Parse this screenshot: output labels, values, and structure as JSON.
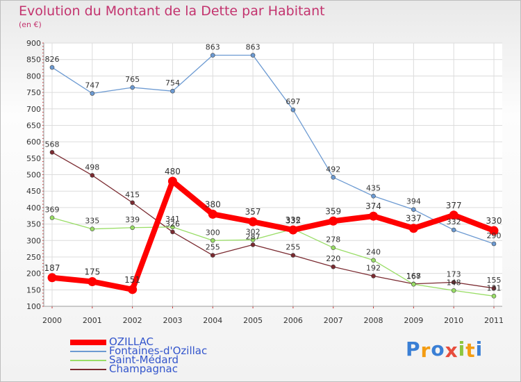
{
  "chart_data": {
    "type": "line",
    "title": "Evolution du Montant de la Dette par Habitant",
    "subtitle": "(en €)",
    "x": [
      "2000",
      "2001",
      "2002",
      "2003",
      "2004",
      "2005",
      "2006",
      "2007",
      "2008",
      "2009",
      "2010",
      "2011"
    ],
    "ylim": [
      100,
      900
    ],
    "yticks": [
      100,
      150,
      200,
      250,
      300,
      350,
      400,
      450,
      500,
      550,
      600,
      650,
      700,
      750,
      800,
      850,
      900
    ],
    "grid": true,
    "legend_position": "bottom-left",
    "series": [
      {
        "name": "OZILLAC",
        "color": "#ff0000",
        "values": [
          187,
          175,
          151,
          480,
          380,
          357,
          332,
          359,
          374,
          337,
          377,
          330
        ]
      },
      {
        "name": "Fontaines-d'Ozillac",
        "color": "#6c9ad2",
        "values": [
          826,
          747,
          765,
          754,
          863,
          863,
          697,
          492,
          435,
          394,
          332,
          290
        ]
      },
      {
        "name": "Saint-Médard",
        "color": "#99dd66",
        "values": [
          369,
          335,
          339,
          341,
          300,
          302,
          335,
          278,
          240,
          167,
          148,
          131
        ]
      },
      {
        "name": "Champagnac",
        "color": "#7a2a30",
        "values": [
          568,
          498,
          415,
          326,
          255,
          287,
          255,
          220,
          192,
          168,
          173,
          155
        ]
      }
    ]
  },
  "logo": {
    "letters": [
      "P",
      "r",
      "o",
      "x",
      "i",
      "t",
      "i"
    ],
    "colors": [
      "#3a7fd5",
      "#f39c12",
      "#3a7fd5",
      "#e74c3c",
      "#8cc63f",
      "#f39c12",
      "#3a7fd5"
    ]
  }
}
